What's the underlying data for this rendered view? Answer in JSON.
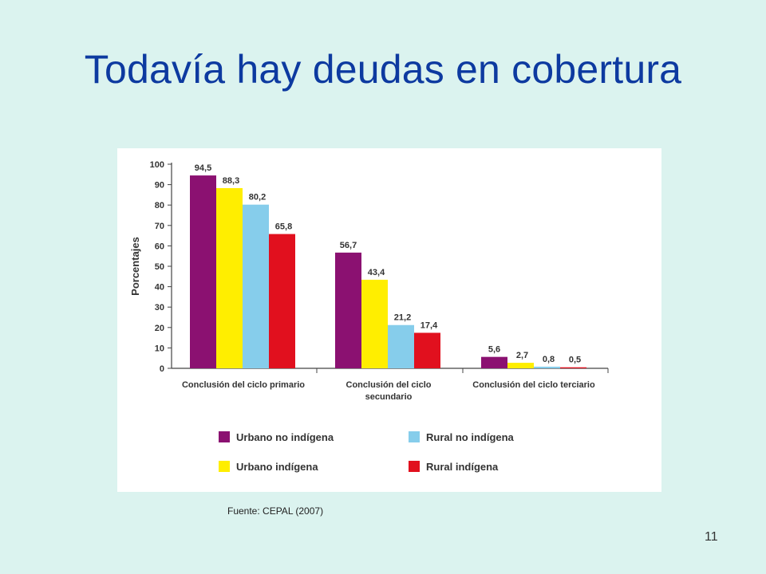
{
  "slide": {
    "title": "Todavía hay deudas en cobertura",
    "source": "Fuente: CEPAL (2007)",
    "page_number": "11"
  },
  "chart_data": {
    "type": "bar",
    "ylabel": "Porcentajes",
    "ylim": [
      0,
      100
    ],
    "yticks": [
      0,
      10,
      20,
      30,
      40,
      50,
      60,
      70,
      80,
      90,
      100
    ],
    "categories": [
      [
        "Conclusión del ciclo primario"
      ],
      [
        "Conclusión del ciclo",
        "secundario"
      ],
      [
        "Conclusión del ciclo terciario"
      ]
    ],
    "series": [
      {
        "name": "Urbano no indígena",
        "color": "#8b1171",
        "values": [
          94.5,
          56.7,
          5.6
        ],
        "labels": [
          "94,5",
          "56,7",
          "5,6"
        ]
      },
      {
        "name": "Urbano indígena",
        "color": "#ffee00",
        "values": [
          88.3,
          43.4,
          2.7
        ],
        "labels": [
          "88,3",
          "43,4",
          "2,7"
        ]
      },
      {
        "name": "Rural no indígena",
        "color": "#86cdeb",
        "values": [
          80.2,
          21.2,
          0.8
        ],
        "labels": [
          "80,2",
          "21,2",
          "0,8"
        ]
      },
      {
        "name": "Rural indígena",
        "color": "#e1101e",
        "values": [
          65.8,
          17.4,
          0.5
        ],
        "labels": [
          "65,8",
          "17,4",
          "0,5"
        ]
      }
    ],
    "grid": false,
    "legend": "bottom"
  }
}
